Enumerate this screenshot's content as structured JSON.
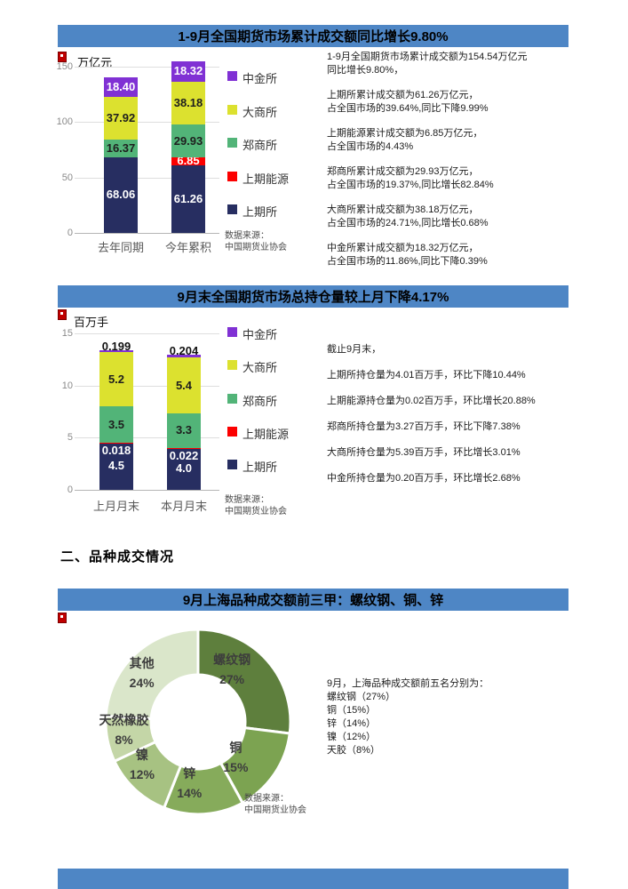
{
  "colors": {
    "title_bar": "#4E86C5",
    "navy": "#272E61",
    "red": "#FC0000",
    "green": "#52B478",
    "yellow": "#DCE12F",
    "purple": "#8031D4"
  },
  "title_bars": [
    "1-9月全国期货市场累计成交额同比增长9.80%",
    "9月末全国期货市场总持仓量较上月下降4.17%",
    "9月上海品种成交额前三甲：螺纹钢、铜、锌"
  ],
  "section_heading": "二、品种成交情况",
  "chart_data": [
    {
      "type": "bar",
      "title": "1-9月全国期货市场累计成交额同比增长9.80%",
      "unit": "万亿元",
      "ylim": [
        0,
        150
      ],
      "yticks": [
        "0",
        "50",
        "100",
        "150"
      ],
      "categories": [
        "去年同期",
        "今年累积"
      ],
      "series": [
        {
          "name": "上期所",
          "color": "#272E61",
          "text": "#ffffff",
          "values": [
            68.06,
            61.26
          ]
        },
        {
          "name": "上期能源",
          "color": "#FC0000",
          "text": "#ffffff",
          "values": [
            0,
            6.85
          ]
        },
        {
          "name": "郑商所",
          "color": "#52B478",
          "text": "#1e1e1e",
          "values": [
            16.37,
            29.93
          ]
        },
        {
          "name": "大商所",
          "color": "#DCE12F",
          "text": "#1e1e1e",
          "values": [
            37.92,
            38.18
          ]
        },
        {
          "name": "中金所",
          "color": "#8031D4",
          "text": "#ffffff",
          "values": [
            18.4,
            18.32
          ]
        }
      ],
      "value_labels": [
        [
          "68.06",
          "61.26"
        ],
        [
          "",
          "6.85"
        ],
        [
          "16.37",
          "29.93"
        ],
        [
          "37.92",
          "38.18"
        ],
        [
          "18.40",
          "18.32"
        ]
      ],
      "legend": [
        "中金所",
        "大商所",
        "郑商所",
        "上期能源",
        "上期所"
      ],
      "source_lines": [
        "数据来源：",
        "中国期货业协会"
      ]
    },
    {
      "type": "bar",
      "title": "9月末全国期货市场总持仓量较上月下降4.17%",
      "unit": "百万手",
      "ylim": [
        0,
        15
      ],
      "yticks": [
        "0",
        "5",
        "10",
        "15"
      ],
      "categories": [
        "上月月末",
        "本月月末"
      ],
      "series": [
        {
          "name": "上期所",
          "color": "#272E61",
          "text": "#ffffff",
          "values": [
            4.5,
            4.0
          ]
        },
        {
          "name": "上期能源",
          "color": "#FC0000",
          "text": "#ffffff",
          "values": [
            0.018,
            0.022
          ],
          "small": "below_seg"
        },
        {
          "name": "郑商所",
          "color": "#52B478",
          "text": "#1e1e1e",
          "values": [
            3.5,
            3.3
          ]
        },
        {
          "name": "大商所",
          "color": "#DCE12F",
          "text": "#1e1e1e",
          "values": [
            5.2,
            5.4
          ]
        },
        {
          "name": "中金所",
          "color": "#8031D4",
          "text": "#ffffff",
          "values": [
            0.199,
            0.204
          ],
          "small": "above_bar",
          "small_text": "#111111"
        }
      ],
      "value_labels": [
        [
          "4.5",
          "4.0"
        ],
        [
          "0.018",
          "0.022"
        ],
        [
          "3.5",
          "3.3"
        ],
        [
          "5.2",
          "5.4"
        ],
        [
          "0.199",
          "0.204"
        ]
      ],
      "legend": [
        "中金所",
        "大商所",
        "郑商所",
        "上期能源",
        "上期所"
      ],
      "source_lines": [
        "数据来源：",
        "中国期货业协会"
      ]
    },
    {
      "type": "pie",
      "title": "9月上海品种成交额前三甲：螺纹钢、铜、锌",
      "slices": [
        {
          "label": "螺纹钢",
          "pct": "27%",
          "value": 27,
          "color": "#5E7F3D"
        },
        {
          "label": "铜",
          "pct": "15%",
          "value": 15,
          "color": "#7CA351"
        },
        {
          "label": "锌",
          "pct": "14%",
          "value": 14,
          "color": "#86AB5B"
        },
        {
          "label": "镍",
          "pct": "12%",
          "value": 12,
          "color": "#A7C282"
        },
        {
          "label": "天然橡胶",
          "pct": "8%",
          "value": 8,
          "color": "#C4D6A7"
        },
        {
          "label": "其他",
          "pct": "24%",
          "value": 24,
          "color": "#DAE6CA"
        }
      ],
      "source_lines": [
        "数据来源：",
        "中国期货业协会"
      ]
    }
  ],
  "text_blocks": [
    {
      "paragraphs": [
        [
          "1-9月全国期货市场累计成交额为154.54万亿元",
          "同比增长9.80%，"
        ],
        [
          "上期所累计成交额为61.26万亿元，",
          "占全国市场的39.64%,同比下降9.99%"
        ],
        [
          "上期能源累计成交额为6.85万亿元，",
          "占全国市场的4.43%"
        ],
        [
          "郑商所累计成交额为29.93万亿元，",
          "占全国市场的19.37%,同比增长82.84%"
        ],
        [
          "大商所累计成交额为38.18万亿元，",
          "占全国市场的24.71%,同比增长0.68%"
        ],
        [
          "中金所累计成交额为18.32万亿元，",
          "占全国市场的11.86%,同比下降0.39%"
        ]
      ]
    },
    {
      "paragraphs": [
        [
          "截止9月末，"
        ],
        [
          "上期所持仓量为4.01百万手，环比下降10.44%"
        ],
        [
          "上期能源持仓量为0.02百万手，环比增长20.88%"
        ],
        [
          "郑商所持仓量为3.27百万手，环比下降7.38%"
        ],
        [
          "大商所持仓量为5.39百万手，环比增长3.01%"
        ],
        [
          "中金所持仓量为0.20百万手，环比增长2.68%"
        ]
      ]
    },
    {
      "paragraphs": [
        [
          "9月，上海品种成交额前五名分别为："
        ],
        [
          "螺纹钢（27%）"
        ],
        [
          "铜（15%）"
        ],
        [
          "锌（14%）"
        ],
        [
          "镍（12%）"
        ],
        [
          "天胶（8%）"
        ]
      ]
    }
  ]
}
